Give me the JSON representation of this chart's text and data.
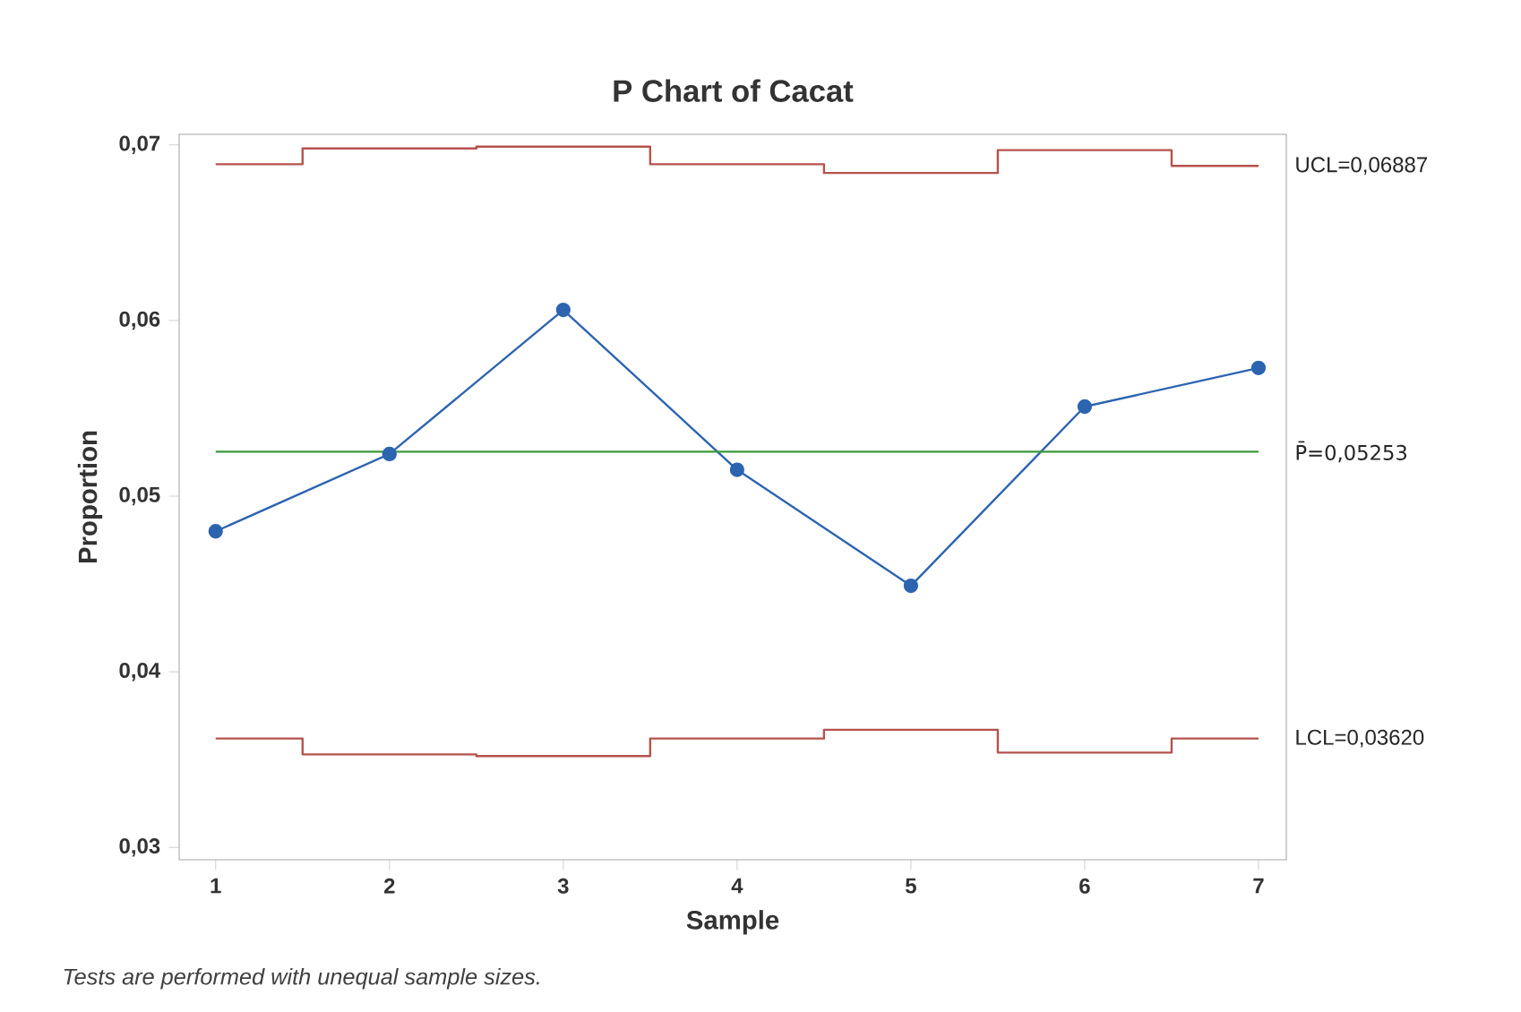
{
  "chart_data": {
    "type": "line",
    "title": "P Chart of Cacat",
    "xlabel": "Sample",
    "ylabel": "Proportion",
    "x": [
      1,
      2,
      3,
      4,
      5,
      6,
      7
    ],
    "series": [
      {
        "name": "UCL=0,06887",
        "type": "step",
        "color": "#b5524e",
        "marker": "none",
        "values": [
          0.0689,
          0.0698,
          0.0699,
          0.0689,
          0.0684,
          0.0697,
          0.0688
        ]
      },
      {
        "name": "LCL=0,03620",
        "type": "step",
        "color": "#b5524e",
        "marker": "none",
        "values": [
          0.0362,
          0.0353,
          0.0352,
          0.0362,
          0.0367,
          0.0354,
          0.0362
        ]
      },
      {
        "type": "line",
        "color": "#2d64b0",
        "marker": "circle",
        "values": [
          0.048,
          0.0524,
          0.0606,
          0.0515,
          0.0449,
          0.0551,
          0.0573
        ]
      }
    ],
    "ref_lines": [
      {
        "axis": "y",
        "value": 0.05253,
        "label": "P̄=0,05253",
        "color": "#3a9a3a"
      }
    ],
    "xlim": [
      0.79,
      7.16
    ],
    "ylim": [
      0.0293,
      0.0706
    ],
    "xticks": [
      1,
      2,
      3,
      4,
      5,
      6,
      7
    ],
    "yticks": [
      {
        "value": 0.03,
        "label": "0,03"
      },
      {
        "value": 0.04,
        "label": "0,04"
      },
      {
        "value": 0.05,
        "label": "0,05"
      },
      {
        "value": 0.06,
        "label": "0,06"
      },
      {
        "value": 0.07,
        "label": "0,07"
      }
    ],
    "grid": false,
    "annotations": [
      "Tests are performed with unequal sample sizes."
    ]
  }
}
